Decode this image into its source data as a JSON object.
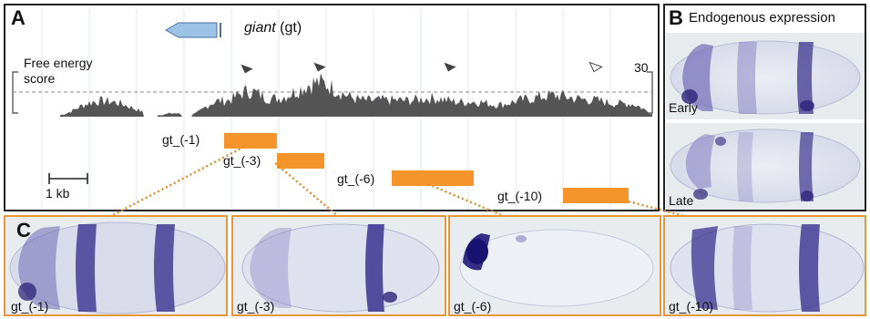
{
  "panel_a": {
    "letter": "A",
    "gene_name": "giant",
    "gene_abbrev": "(gt)",
    "score_label_line1": "Free energy",
    "score_label_line2": "score",
    "score_max": "30",
    "scale_label": "1 kb",
    "fragments": [
      "gt_(-1)",
      "gt_(-3)",
      "gt_(-6)",
      "gt_(-10)"
    ]
  },
  "panel_b": {
    "letter": "B",
    "title": "Endogenous expression",
    "stages": [
      "Early",
      "Late"
    ]
  },
  "panel_c": {
    "letter": "C",
    "labels": [
      "gt_(-1)",
      "gt_(-3)",
      "gt_(-6)",
      "gt_(-10)"
    ]
  },
  "colors": {
    "fragment": "#f4942a",
    "stain": "#3a2f8a",
    "gene_arrow": "#9cc3e6",
    "track": "#555555"
  }
}
